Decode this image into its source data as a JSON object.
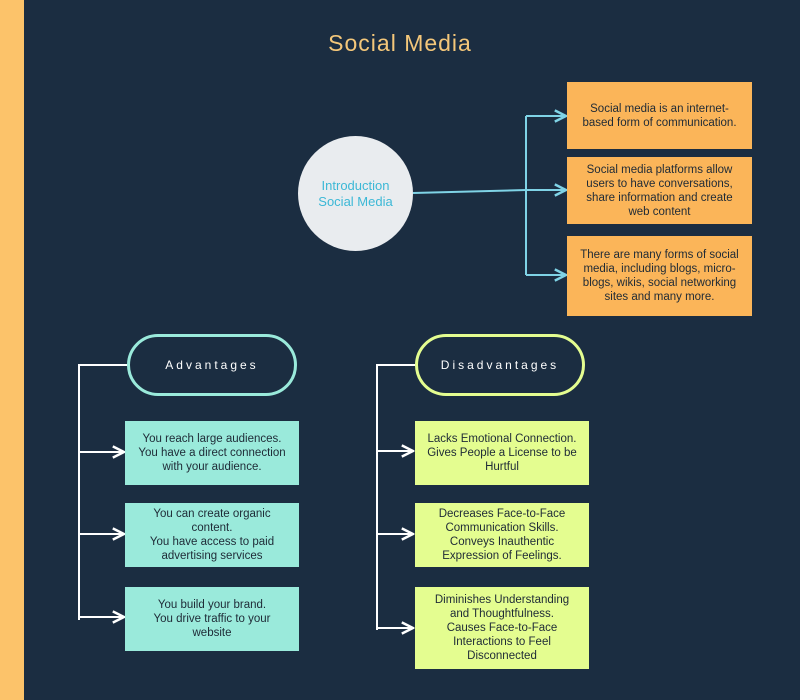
{
  "title": "Social Media",
  "intro": {
    "line1": "Introduction",
    "line2": "Social Media"
  },
  "facts": [
    {
      "lines": [
        "Social media is an internet-",
        "based form of communication."
      ]
    },
    {
      "lines": [
        "Social media platforms allow",
        "users to have conversations,",
        "share information and create",
        "web content"
      ]
    },
    {
      "lines": [
        "There are many forms of social",
        "media, including blogs, micro-",
        "blogs, wikis, social networking",
        "sites and many more."
      ]
    }
  ],
  "advantages": {
    "label": "Advantages",
    "items": [
      {
        "lines": [
          "You reach large audiences.",
          "You have a direct connection",
          "with your audience."
        ]
      },
      {
        "lines": [
          "You can create organic",
          "content.",
          "You have access to paid",
          "advertising services"
        ]
      },
      {
        "lines": [
          "You build your brand.",
          "You drive traffic to your",
          "website"
        ]
      }
    ]
  },
  "disadvantages": {
    "label": "Disadvantages",
    "items": [
      {
        "lines": [
          "Lacks Emotional Connection.",
          "Gives People a License to be",
          "Hurtful"
        ]
      },
      {
        "lines": [
          "Decreases Face-to-Face",
          "Communication Skills.",
          "Conveys Inauthentic",
          "Expression of Feelings."
        ]
      },
      {
        "lines": [
          "Diminishes Understanding",
          "and Thoughtfulness.",
          "Causes Face-to-Face",
          "Interactions to Feel",
          "Disconnected"
        ]
      }
    ]
  },
  "colors": {
    "background": "#1b2d41",
    "side_stripe": "#fcc36a",
    "title": "#f4c77a",
    "fact_box": "#fbb559",
    "advantage_box": "#9aeadb",
    "disadvantage_box": "#e4fd90",
    "intro_circle": "#e9ecef",
    "intro_text": "#3cb8d6",
    "connector_blue": "#7fd3e6",
    "connector_white": "#ffffff"
  }
}
